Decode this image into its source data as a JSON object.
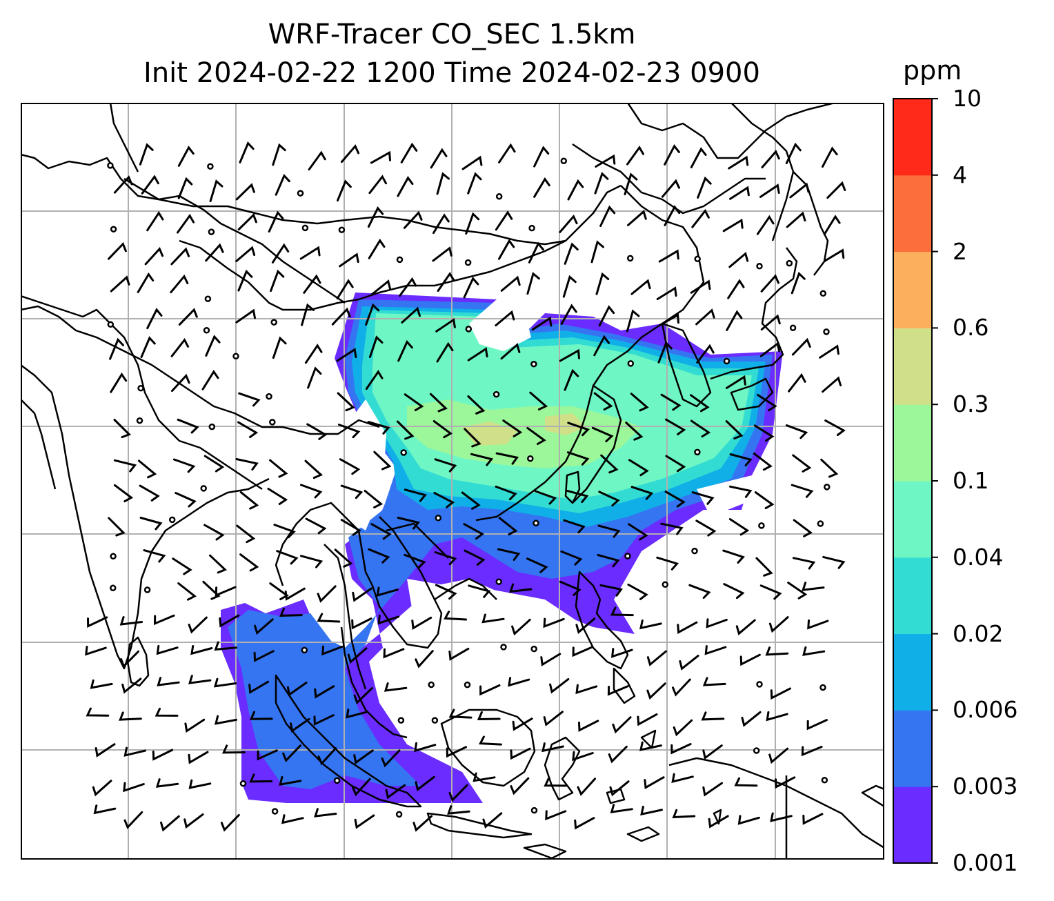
{
  "title": {
    "line1": "WRF-Tracer CO_SEC 1.5km",
    "line2": "Init 2024-02-22 1200 Time 2024-02-23 0900"
  },
  "colorbar": {
    "unit": "ppm",
    "levels": [
      "0.001",
      "0.003",
      "0.006",
      "0.02",
      "0.04",
      "0.1",
      "0.3",
      "0.6",
      "2",
      "4",
      "10"
    ],
    "colors": [
      "#6a2cff",
      "#3575f2",
      "#10afe8",
      "#33dcd2",
      "#6ef7c4",
      "#9cf79a",
      "#cfe088",
      "#fcb05e",
      "#fd6f3a",
      "#ff2a1a"
    ]
  },
  "map": {
    "grid": true,
    "grid_color": "#b0b0b0",
    "features": [
      "coastlines",
      "country-borders",
      "wind-barbs",
      "calm-circles"
    ],
    "tracer_color_scale": "rainbow"
  }
}
